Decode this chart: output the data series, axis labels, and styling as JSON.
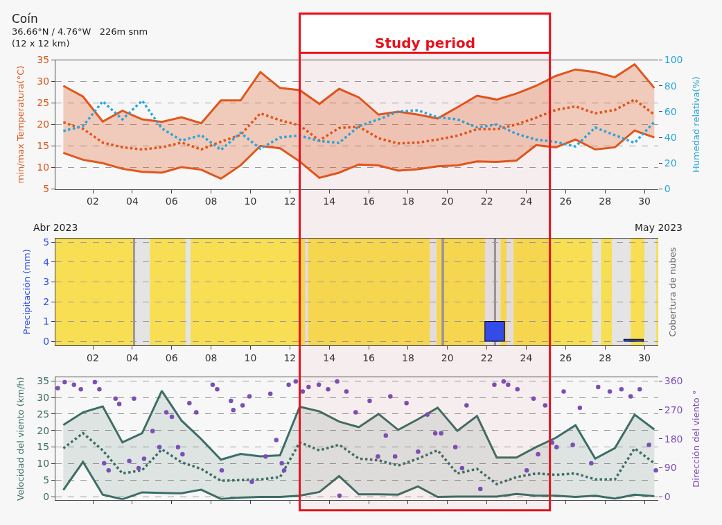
{
  "chart_data": [
    {
      "type": "line",
      "title": "Coín",
      "subtitle": "36.66°N / 4.76°W   226m snm\n(12 x 12 km)",
      "ylabel": "min/max Temperatura(°C)",
      "y2label": "Humedad relativa(%)",
      "annotations": [
        "Abr 2023",
        "May 2023"
      ],
      "x": [
        0.5,
        1.5,
        2.5,
        3.5,
        4.5,
        5.5,
        6.5,
        7.5,
        8.5,
        9.5,
        10.5,
        11.5,
        12.5,
        13.5,
        14.5,
        15.5,
        16.5,
        17.5,
        18.5,
        19.5,
        20.5,
        21.5,
        22.5,
        23.5,
        24.5,
        25.5,
        26.5,
        27.5,
        28.5,
        29.5,
        30.5
      ],
      "xlim": [
        0.1,
        30.7
      ],
      "xticks": [
        {
          "value": 2,
          "label": "02"
        },
        {
          "value": 4,
          "label": "04"
        },
        {
          "value": 6,
          "label": "06"
        },
        {
          "value": 8,
          "label": "08"
        },
        10,
        12,
        14,
        16,
        18,
        20,
        22,
        24,
        26,
        28,
        30
      ],
      "ylim": [
        5,
        35
      ],
      "yticks": [
        5,
        10,
        15,
        20,
        25,
        30,
        35
      ],
      "y2lim": [
        0,
        100
      ],
      "y2ticks": [
        0,
        20,
        40,
        60,
        80,
        100
      ],
      "grid": "y",
      "bands": [
        {
          "axis": "x",
          "from": 12.5,
          "to": 25.2,
          "label": "Study period",
          "color": "#e8101a"
        }
      ],
      "series": [
        {
          "type": "line",
          "color": "#e0561c",
          "line_style": "dotted",
          "values": [
            20.5,
            19,
            15.8,
            14.7,
            14.2,
            14.7,
            15.8,
            14.2,
            16,
            17.6,
            22.6,
            21,
            19.8,
            16.3,
            19.2,
            19.5,
            16.8,
            15.6,
            15.8,
            16.5,
            17.4,
            18.9,
            18.9,
            20,
            21.6,
            23.4,
            24.2,
            22.6,
            23.4,
            25.8,
            22.3
          ],
          "upper": [
            29,
            26.5,
            20.7,
            23.2,
            21.2,
            20.6,
            21.7,
            20.3,
            25.6,
            25.6,
            32.2,
            28.5,
            28,
            24.8,
            28.3,
            26.3,
            22.3,
            23,
            22.3,
            21.4,
            24,
            26.7,
            25.8,
            27.2,
            29,
            31.3,
            32.8,
            32.2,
            31,
            34,
            28.5
          ],
          "lower": [
            13.4,
            11.8,
            11,
            9.7,
            9,
            8.8,
            10.1,
            9.5,
            7.4,
            10.5,
            15,
            14.5,
            11.4,
            7.6,
            8.8,
            10.7,
            10.5,
            9.3,
            9.6,
            10.3,
            10.5,
            11.4,
            11.3,
            11.6,
            15.2,
            14.7,
            16.5,
            14.2,
            14.7,
            18.6,
            17
          ]
        },
        {
          "type": "line",
          "color": "#e0561c",
          "values": [
            29,
            26.5,
            20.7,
            23.2,
            21.2,
            20.6,
            21.7,
            20.3,
            25.6,
            25.6,
            32.2,
            28.5,
            28,
            24.8,
            28.3,
            26.3,
            22.3,
            23,
            22.3,
            21.4,
            24,
            26.7,
            25.8,
            27.2,
            29,
            31.3,
            32.8,
            32.2,
            31,
            34,
            28.5
          ]
        },
        {
          "type": "line",
          "color": "#e0561c",
          "values": [
            13.4,
            11.8,
            11,
            9.7,
            9,
            8.8,
            10.1,
            9.5,
            7.4,
            10.5,
            15,
            14.5,
            11.4,
            7.6,
            8.8,
            10.7,
            10.5,
            9.3,
            9.6,
            10.3,
            10.5,
            11.4,
            11.3,
            11.6,
            15.2,
            14.7,
            16.5,
            14.2,
            14.7,
            18.6,
            17
          ]
        },
        {
          "type": "line",
          "color": "#2aa6dc",
          "line_style": "dotted",
          "axis": "y2",
          "values": [
            45,
            48.7,
            68,
            54,
            68.5,
            47,
            37.6,
            41.7,
            30.3,
            43.5,
            31.3,
            40,
            41.4,
            37.2,
            35.8,
            48.7,
            54,
            60,
            61,
            55.6,
            54,
            47.7,
            50,
            42.8,
            38.3,
            36.5,
            33,
            47.7,
            41.7,
            35.8,
            52
          ]
        }
      ]
    },
    {
      "type": "bar",
      "ylabel": "Precipitación (mm)",
      "y2label": "Cobertura de nubes",
      "x": [
        22.4,
        29.45
      ],
      "values": [
        1,
        0.1
      ],
      "color": "#2d4ff0",
      "xlim": [
        0.1,
        30.7
      ],
      "xticks": [
        {
          "value": 2,
          "label": "02"
        },
        {
          "value": 4,
          "label": "04"
        },
        {
          "value": 6,
          "label": "06"
        },
        {
          "value": 8,
          "label": "08"
        },
        10,
        12,
        14,
        16,
        18,
        20,
        22,
        24,
        26,
        28,
        30
      ],
      "ylim": [
        -0.2,
        5.2
      ],
      "yticks": [
        0,
        1,
        2,
        3,
        4,
        5
      ],
      "grid": "y",
      "bands": [
        {
          "axis": "x",
          "from": 0.1,
          "to": 30.7,
          "color": "#f7de52"
        },
        {
          "axis": "x",
          "from": 4.04,
          "to": 4.15,
          "color": "#9a9a9a"
        },
        {
          "axis": "x",
          "from": 4.15,
          "to": 4.9,
          "color": "#e4e4e4"
        },
        {
          "axis": "x",
          "from": 6.7,
          "to": 6.96,
          "color": "#e4e4e4"
        },
        {
          "axis": "x",
          "from": 12.77,
          "to": 12.94,
          "color": "#e4e4e4"
        },
        {
          "axis": "x",
          "from": 19.1,
          "to": 19.45,
          "color": "#e4e4e4"
        },
        {
          "axis": "x",
          "from": 19.7,
          "to": 19.83,
          "color": "#9a9a9a"
        },
        {
          "axis": "x",
          "from": 21.9,
          "to": 22.7,
          "color": "#e4e4e4"
        },
        {
          "axis": "x",
          "from": 22.36,
          "to": 22.47,
          "color": "#9a9a9a"
        },
        {
          "axis": "x",
          "from": 23.0,
          "to": 23.35,
          "color": "#e4e4e4"
        },
        {
          "axis": "x",
          "from": 27.36,
          "to": 27.8,
          "color": "#e4e4e4"
        },
        {
          "axis": "x",
          "from": 28.35,
          "to": 29.3,
          "color": "#e4e4e4"
        },
        {
          "axis": "x",
          "from": 30.0,
          "to": 30.6,
          "color": "#e4e4e4"
        }
      ]
    },
    {
      "type": "line",
      "ylabel": "Velocidad del viento (km/h)",
      "y2label": "Dirección del viento °",
      "x": [
        0.5,
        1.5,
        2.5,
        3.5,
        4.5,
        5.5,
        6.5,
        7.5,
        8.5,
        9.5,
        10.5,
        11.5,
        12.5,
        13.5,
        14.5,
        15.5,
        16.5,
        17.5,
        18.5,
        19.5,
        20.5,
        21.5,
        22.5,
        23.5,
        24.5,
        25.5,
        26.5,
        27.5,
        28.5,
        29.5,
        30.5
      ],
      "xlim": [
        0.1,
        30.7
      ],
      "xticks": [
        2,
        4,
        6,
        8,
        10,
        12,
        14,
        16,
        18,
        20,
        22,
        24,
        26,
        28,
        30
      ],
      "tick_labels": "y",
      "ylim": [
        -1,
        36
      ],
      "yticks": [
        0,
        5,
        10,
        15,
        20,
        25,
        30,
        35
      ],
      "y2lim": [
        -10,
        370
      ],
      "y2ticks": [
        0,
        90,
        180,
        270,
        360
      ],
      "grid": "y",
      "series": [
        {
          "type": "line",
          "color": "#3d6e66",
          "line_style": "dotted",
          "values": [
            14.6,
            19.2,
            14,
            7,
            8,
            14.3,
            10.4,
            8.4,
            4.8,
            5,
            5.2,
            5.9,
            16.4,
            14,
            15.7,
            11.5,
            11,
            9.4,
            11.5,
            14,
            7,
            8.4,
            3.8,
            5.9,
            7,
            6.6,
            7,
            5.2,
            5.2,
            14.6,
            10.1
          ],
          "upper": [
            21.7,
            25.5,
            27.3,
            16.4,
            19.2,
            32,
            23,
            17.4,
            11.2,
            12.9,
            12.2,
            12.5,
            27.2,
            25.8,
            22.7,
            21,
            25,
            20.2,
            23.4,
            26.9,
            19.9,
            24.4,
            11.8,
            11.8,
            15,
            17.8,
            21.6,
            11.5,
            14.7,
            24.8,
            20.3
          ],
          "lower": [
            2,
            10.5,
            0.6,
            -0.8,
            1.3,
            1.1,
            1,
            2.1,
            -0.7,
            -0.3,
            -0.1,
            -0.1,
            0.3,
            1.4,
            6.2,
            0.7,
            0.7,
            0.6,
            3.1,
            -0.1,
            0,
            0,
            0,
            0.8,
            0.3,
            0.3,
            -0.1,
            0.3,
            -0.6,
            0.6,
            0.1
          ]
        },
        {
          "type": "line",
          "color": "#3d6e66",
          "values": [
            21.7,
            25.5,
            27.3,
            16.4,
            19.2,
            32,
            23,
            17.4,
            11.2,
            12.9,
            12.2,
            12.5,
            27.2,
            25.8,
            22.7,
            21,
            25,
            20.2,
            23.4,
            26.9,
            19.9,
            24.4,
            11.8,
            11.8,
            15,
            17.8,
            21.6,
            11.5,
            14.7,
            24.8,
            20.3
          ]
        },
        {
          "type": "line",
          "color": "#3d6e66",
          "values": [
            2,
            10.5,
            0.6,
            -0.8,
            1.3,
            1.1,
            1,
            2.1,
            -0.7,
            -0.3,
            -0.1,
            -0.1,
            0.3,
            1.4,
            6.2,
            0.7,
            0.7,
            0.6,
            3.1,
            -0.1,
            0,
            0,
            0,
            0.8,
            0.3,
            0.3,
            -0.1,
            0.3,
            -0.6,
            0.6,
            0.1
          ]
        },
        {
          "type": "scatter",
          "color": "#7b4fb8",
          "axis": "y2",
          "marker": "circle",
          "x": [
            0.22,
            0.57,
            1.04,
            1.39,
            2.1,
            2.33,
            2.57,
            2.8,
            3.15,
            3.34,
            3.85,
            4.09,
            4.32,
            4.6,
            5.03,
            5.38,
            5.73,
            6.01,
            6.32,
            6.55,
            6.9,
            7.25,
            8.08,
            8.31,
            8.54,
            9.01,
            9.13,
            9.6,
            9.95,
            10.07,
            10.77,
            11.01,
            11.31,
            11.59,
            11.71,
            11.94,
            12.3,
            12.65,
            12.95,
            13.47,
            13.94,
            14.4,
            14.52,
            14.87,
            15.34,
            16.05,
            16.47,
            16.87,
            17.1,
            17.34,
            17.92,
            18.51,
            18.98,
            19.38,
            19.68,
            20.4,
            20.74,
            20.97,
            21.67,
            22.38,
            22.85,
            23.08,
            23.55,
            24.02,
            24.37,
            24.6,
            24.96,
            25.31,
            25.54,
            25.9,
            26.36,
            26.72,
            27.3,
            27.65,
            28.24,
            28.83,
            29.3,
            29.76,
            30.23,
            30.58
          ],
          "values": [
            337,
            356,
            348,
            334,
            356,
            334,
            104,
            82,
            305,
            288,
            111,
            305,
            89,
            118,
            204,
            154,
            262,
            248,
            154,
            132,
            291,
            262,
            348,
            334,
            82,
            298,
            269,
            284,
            312,
            46,
            125,
            320,
            176,
            104,
            82,
            348,
            358,
            327,
            341,
            348,
            334,
            358,
            3,
            327,
            262,
            298,
            125,
            190,
            312,
            125,
            291,
            140,
            255,
            197,
            197,
            154,
            89,
            284,
            24,
            348,
            358,
            348,
            334,
            82,
            305,
            132,
            284,
            168,
            154,
            327,
            161,
            276,
            104,
            341,
            327,
            334,
            312,
            334,
            161,
            82
          ]
        }
      ]
    }
  ]
}
